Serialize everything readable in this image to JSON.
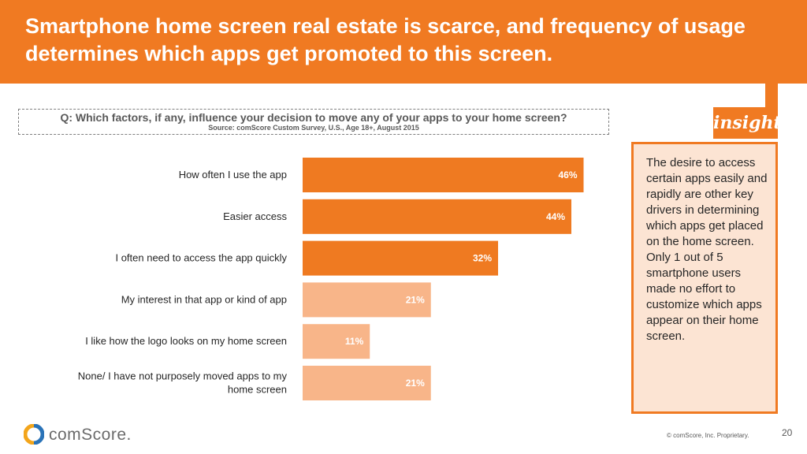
{
  "header": {
    "title": "Smartphone home screen real estate is scarce, and frequency of usage determines which apps get promoted to this screen."
  },
  "question": {
    "text": "Q: Which factors, if any, influence your decision to move any of your apps to your home screen?",
    "source": "Source: comScore Custom Survey, U.S., Age 18+, August 2015"
  },
  "insight": {
    "badge": "insight",
    "text": "The desire to access certain apps easily and rapidly are other key drivers in determining which apps get placed on the home screen. Only 1 out of 5 smartphone users made no effort to customize which apps appear on their home screen."
  },
  "footer": {
    "brand": "comScore.",
    "copyright": "© comScore, Inc. Proprietary.",
    "page_number": "20"
  },
  "colors": {
    "accent": "#f07a22",
    "bar_dark": "#ef7a21",
    "bar_light": "#f8b589",
    "insight_fill": "#fce4d3"
  },
  "chart_data": {
    "type": "bar",
    "orientation": "horizontal",
    "categories": [
      "How often I use the app",
      "Easier access",
      "I often need to access the app quickly",
      "My interest in that app or kind of app",
      "I like how the logo looks on my home screen",
      "None/ I have not purposely moved apps to my home screen"
    ],
    "values": [
      46,
      44,
      32,
      21,
      11,
      21
    ],
    "value_labels": [
      "46%",
      "44%",
      "32%",
      "21%",
      "11%",
      "21%"
    ],
    "highlight": [
      true,
      true,
      true,
      false,
      false,
      false
    ],
    "unit": "%",
    "xlim": [
      0,
      50
    ],
    "grid": false,
    "legend": "none"
  }
}
